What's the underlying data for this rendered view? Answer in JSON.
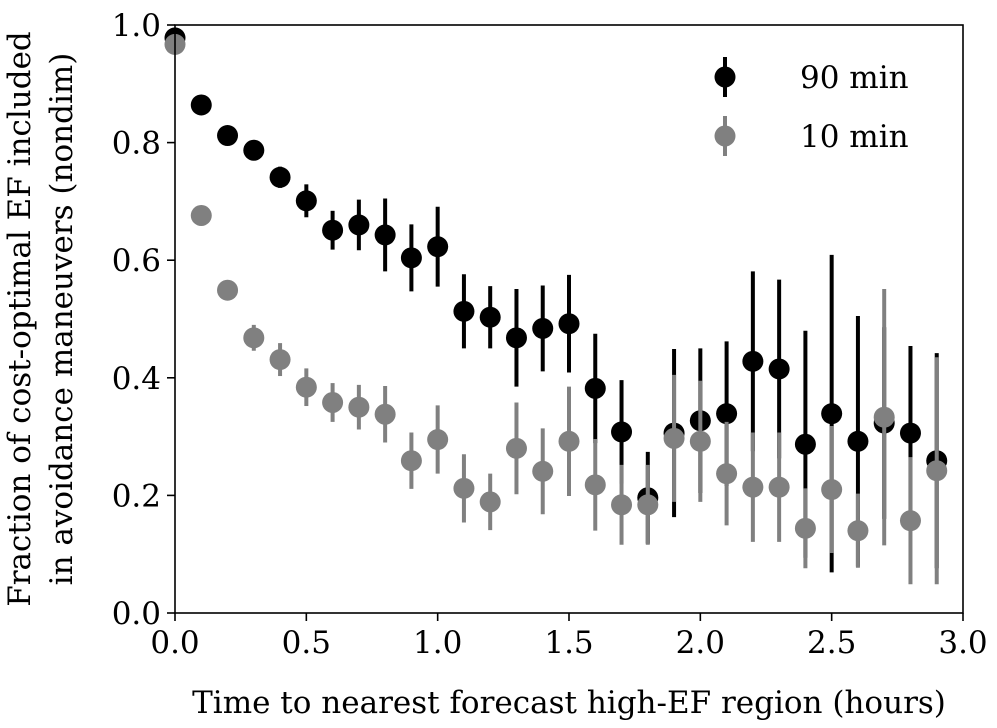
{
  "chart_data": {
    "type": "scatter",
    "title": "",
    "xlabel": "Time to nearest forecast high-EF region (hours)",
    "ylabel_lines": [
      "Fraction of cost-optimal EF included",
      "in avoidance maneuvers (nondim)"
    ],
    "xlim": [
      0.0,
      3.0
    ],
    "ylim": [
      0.0,
      1.0
    ],
    "xticks": [
      0.0,
      0.5,
      1.0,
      1.5,
      2.0,
      2.5,
      3.0
    ],
    "xtick_labels": [
      "0.0",
      "0.5",
      "1.0",
      "1.5",
      "2.0",
      "2.5",
      "3.0"
    ],
    "yticks": [
      0.0,
      0.2,
      0.4,
      0.6,
      0.8,
      1.0
    ],
    "ytick_labels": [
      "0.0",
      "0.2",
      "0.4",
      "0.6",
      "0.8",
      "1.0"
    ],
    "legend_position": "top-right",
    "grid": false,
    "series": [
      {
        "name": "90 min",
        "color": "#000000",
        "x": [
          0.0,
          0.1,
          0.2,
          0.3,
          0.4,
          0.5,
          0.6,
          0.7,
          0.8,
          0.9,
          1.0,
          1.1,
          1.2,
          1.3,
          1.4,
          1.5,
          1.6,
          1.7,
          1.8,
          1.9,
          2.0,
          2.1,
          2.2,
          2.3,
          2.4,
          2.5,
          2.6,
          2.7,
          2.8,
          2.9
        ],
        "y": [
          0.978,
          0.864,
          0.812,
          0.787,
          0.741,
          0.701,
          0.651,
          0.66,
          0.643,
          0.604,
          0.623,
          0.513,
          0.503,
          0.468,
          0.484,
          0.492,
          0.382,
          0.308,
          0.196,
          0.306,
          0.327,
          0.339,
          0.428,
          0.415,
          0.287,
          0.339,
          0.292,
          0.323,
          0.306,
          0.259
        ],
        "yerr": [
          0.008,
          0.01,
          0.012,
          0.013,
          0.018,
          0.028,
          0.033,
          0.043,
          0.062,
          0.057,
          0.068,
          0.063,
          0.053,
          0.083,
          0.073,
          0.083,
          0.093,
          0.088,
          0.078,
          0.143,
          0.123,
          0.123,
          0.153,
          0.152,
          0.193,
          0.27,
          0.213,
          0.163,
          0.148,
          0.183
        ]
      },
      {
        "name": "10 min",
        "color": "#808080",
        "x": [
          0.0,
          0.1,
          0.2,
          0.3,
          0.4,
          0.5,
          0.6,
          0.7,
          0.8,
          0.9,
          1.0,
          1.1,
          1.2,
          1.3,
          1.4,
          1.5,
          1.6,
          1.7,
          1.8,
          1.9,
          2.0,
          2.1,
          2.2,
          2.3,
          2.4,
          2.5,
          2.6,
          2.7,
          2.8,
          2.9
        ],
        "y": [
          0.967,
          0.676,
          0.549,
          0.468,
          0.431,
          0.384,
          0.358,
          0.35,
          0.338,
          0.259,
          0.295,
          0.212,
          0.189,
          0.28,
          0.241,
          0.292,
          0.218,
          0.184,
          0.184,
          0.297,
          0.292,
          0.237,
          0.214,
          0.214,
          0.144,
          0.21,
          0.14,
          0.333,
          0.157,
          0.242
        ],
        "yerr": [
          0.008,
          0.012,
          0.015,
          0.022,
          0.028,
          0.032,
          0.033,
          0.038,
          0.048,
          0.048,
          0.058,
          0.058,
          0.048,
          0.078,
          0.073,
          0.093,
          0.078,
          0.068,
          0.068,
          0.108,
          0.103,
          0.088,
          0.093,
          0.093,
          0.068,
          0.108,
          0.063,
          0.218,
          0.108,
          0.193
        ]
      }
    ]
  }
}
